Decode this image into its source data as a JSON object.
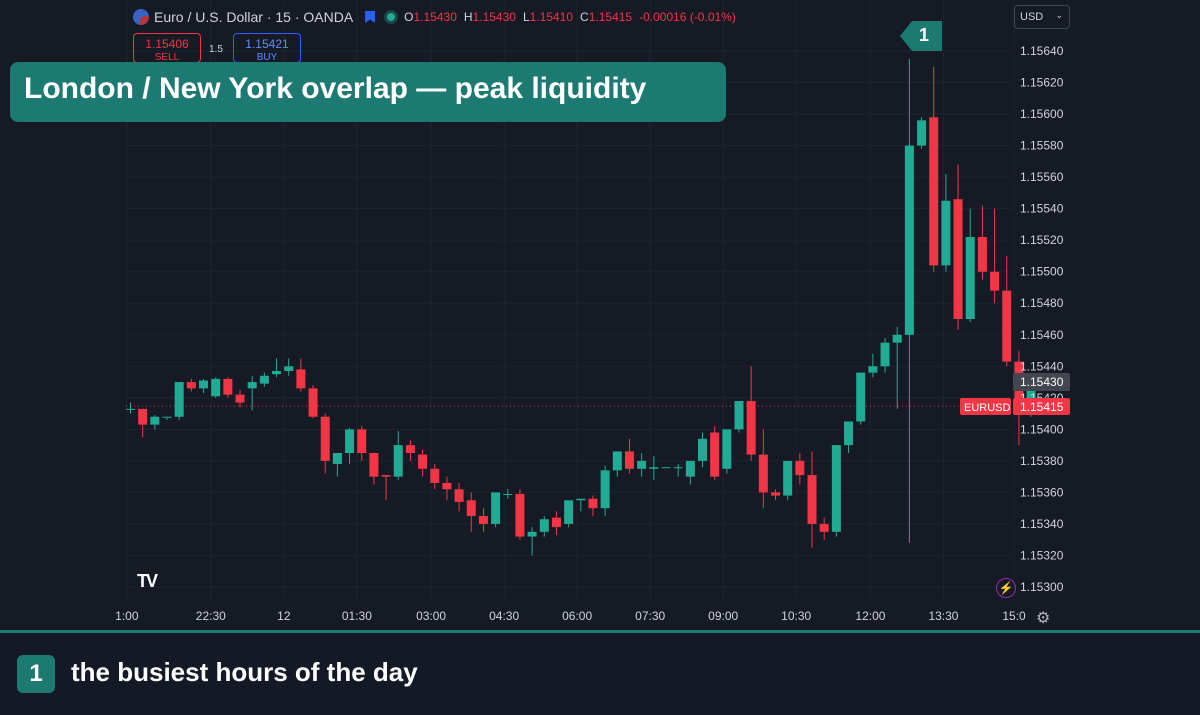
{
  "header": {
    "symbol_title": "Euro / U.S. Dollar · 15 · OANDA",
    "open": "1.15430",
    "high": "1.15430",
    "low": "1.15410",
    "close": "1.15415",
    "change": "-0.00016 (-0.01%)",
    "labels": {
      "o": "O",
      "h": "H",
      "l": "L",
      "c": "C"
    }
  },
  "trade": {
    "sell_price": "1.15406",
    "sell_label": "SELL",
    "spread": "1.5",
    "buy_price": "1.15421",
    "buy_label": "BUY"
  },
  "currency_selector": "USD",
  "banner": "London / New York overlap  —  peak liquidity",
  "callout_number": "1",
  "footer": {
    "number": "1",
    "caption": "the busiest hours of the day"
  },
  "logo_text": "TV",
  "colors": {
    "up": "#22ab94",
    "down": "#f23645",
    "accent": "#1d7a72",
    "background": "#161a25"
  },
  "icons": [
    "flag-icon",
    "bookmark-icon",
    "live-dot-icon",
    "chevron-down-icon",
    "gear-icon",
    "bolt-icon",
    "tradingview-logo"
  ],
  "chart_data": {
    "type": "candlestick",
    "symbol": "EURUSD",
    "interval": "15",
    "y_ticks": [
      "1.15640",
      "1.15620",
      "1.15600",
      "1.15580",
      "1.15560",
      "1.15540",
      "1.15520",
      "1.15500",
      "1.15480",
      "1.15460",
      "1.15440",
      "1.15420",
      "1.15400",
      "1.15380",
      "1.15360",
      "1.15340",
      "1.15320",
      "1.15300"
    ],
    "ylim": [
      1.15295,
      1.15648
    ],
    "x_ticks": [
      "1:00",
      "22:30",
      "12",
      "01:30",
      "03:00",
      "04:30",
      "06:00",
      "07:30",
      "09:00",
      "10:30",
      "12:00",
      "13:30",
      "15:0"
    ],
    "x_tick_index": [
      -0.3,
      6.6,
      12.6,
      18.6,
      24.7,
      30.7,
      36.7,
      42.7,
      48.7,
      54.7,
      60.8,
      66.8,
      72.6
    ],
    "last_price_label": "1.15430",
    "current_price": {
      "symbol": "EURUSD",
      "value": "1.15415"
    },
    "candles": [
      [
        1.15413,
        1.15417,
        1.15413,
        1.1541
      ],
      [
        1.15413,
        1.15413,
        1.15403,
        1.15395
      ],
      [
        1.15403,
        1.15409,
        1.15408,
        1.154
      ],
      [
        1.15408,
        1.15408,
        1.15408,
        1.15406
      ],
      [
        1.15408,
        1.1543,
        1.1543,
        1.15406
      ],
      [
        1.1543,
        1.15432,
        1.15426,
        1.15424
      ],
      [
        1.15426,
        1.15432,
        1.15431,
        1.15423
      ],
      [
        1.15421,
        1.15433,
        1.15432,
        1.1542
      ],
      [
        1.15432,
        1.15433,
        1.15422,
        1.1542
      ],
      [
        1.15422,
        1.15425,
        1.15417,
        1.15414
      ],
      [
        1.15426,
        1.15434,
        1.1543,
        1.15412
      ],
      [
        1.15429,
        1.15436,
        1.15434,
        1.15427
      ],
      [
        1.15435,
        1.15445,
        1.15437,
        1.15433
      ],
      [
        1.15437,
        1.15445,
        1.1544,
        1.15434
      ],
      [
        1.15438,
        1.15445,
        1.15426,
        1.15424
      ],
      [
        1.15426,
        1.15428,
        1.15408,
        1.15407
      ],
      [
        1.15408,
        1.1541,
        1.1538,
        1.15372
      ],
      [
        1.15378,
        1.15384,
        1.15385,
        1.1537
      ],
      [
        1.15385,
        1.15401,
        1.154,
        1.15378
      ],
      [
        1.154,
        1.15402,
        1.15385,
        1.1538
      ],
      [
        1.15385,
        1.15385,
        1.1537,
        1.15365
      ],
      [
        1.15371,
        1.15371,
        1.1537,
        1.15355
      ],
      [
        1.1537,
        1.15399,
        1.1539,
        1.15368
      ],
      [
        1.1539,
        1.15393,
        1.15385,
        1.1538
      ],
      [
        1.15384,
        1.15387,
        1.15375,
        1.1537
      ],
      [
        1.15375,
        1.15378,
        1.15366,
        1.15362
      ],
      [
        1.15366,
        1.1537,
        1.15362,
        1.15355
      ],
      [
        1.15362,
        1.15366,
        1.15354,
        1.15348
      ],
      [
        1.15355,
        1.1536,
        1.15345,
        1.15335
      ],
      [
        1.15345,
        1.1535,
        1.1534,
        1.15335
      ],
      [
        1.1534,
        1.1536,
        1.1536,
        1.15338
      ],
      [
        1.15359,
        1.15362,
        1.15359,
        1.15356
      ],
      [
        1.15359,
        1.15362,
        1.15332,
        1.1533
      ],
      [
        1.15332,
        1.15338,
        1.15335,
        1.1532
      ],
      [
        1.15335,
        1.15345,
        1.15343,
        1.15332
      ],
      [
        1.15344,
        1.15348,
        1.15338,
        1.15333
      ],
      [
        1.1534,
        1.15352,
        1.15355,
        1.15338
      ],
      [
        1.15355,
        1.15355,
        1.15356,
        1.15348
      ],
      [
        1.15356,
        1.15358,
        1.1535,
        1.15345
      ],
      [
        1.1535,
        1.15377,
        1.15374,
        1.15345
      ],
      [
        1.15374,
        1.15384,
        1.15386,
        1.1537
      ],
      [
        1.15386,
        1.15394,
        1.15375,
        1.15372
      ],
      [
        1.15375,
        1.15385,
        1.1538,
        1.1537
      ],
      [
        1.15375,
        1.15383,
        1.15376,
        1.15368
      ],
      [
        1.15376,
        1.15376,
        1.15376,
        1.15376
      ],
      [
        1.15376,
        1.15378,
        1.15376,
        1.1537
      ],
      [
        1.1537,
        1.1538,
        1.1538,
        1.15365
      ],
      [
        1.1538,
        1.15398,
        1.15394,
        1.15376
      ],
      [
        1.15398,
        1.15402,
        1.1537,
        1.15368
      ],
      [
        1.15375,
        1.154,
        1.154,
        1.15372
      ],
      [
        1.154,
        1.15418,
        1.15418,
        1.15398
      ],
      [
        1.15418,
        1.1544,
        1.15384,
        1.1538
      ],
      [
        1.15384,
        1.154,
        1.1536,
        1.1535
      ],
      [
        1.1536,
        1.15362,
        1.15358,
        1.15355
      ],
      [
        1.15358,
        1.1538,
        1.1538,
        1.15355
      ],
      [
        1.1538,
        1.15385,
        1.15371,
        1.15365
      ],
      [
        1.15371,
        1.15386,
        1.1534,
        1.15325
      ],
      [
        1.1534,
        1.15344,
        1.15335,
        1.1533
      ],
      [
        1.15335,
        1.1539,
        1.1539,
        1.15332
      ],
      [
        1.1539,
        1.154,
        1.15405,
        1.15385
      ],
      [
        1.15405,
        1.1542,
        1.15436,
        1.15403
      ],
      [
        1.15436,
        1.15448,
        1.1544,
        1.15433
      ],
      [
        1.1544,
        1.15458,
        1.15455,
        1.15436
      ],
      [
        1.15455,
        1.15465,
        1.1546,
        1.15413
      ],
      [
        1.1546,
        1.15635,
        1.1558,
        1.15328
      ],
      [
        1.1558,
        1.15598,
        1.15596,
        1.15578
      ],
      [
        1.15598,
        1.1563,
        1.15504,
        1.155
      ],
      [
        1.15504,
        1.15562,
        1.15545,
        1.155
      ],
      [
        1.15546,
        1.15568,
        1.1547,
        1.15463
      ],
      [
        1.1547,
        1.1554,
        1.15522,
        1.15468
      ],
      [
        1.15522,
        1.15542,
        1.155,
        1.15495
      ],
      [
        1.155,
        1.1554,
        1.15488,
        1.1548
      ],
      [
        1.15488,
        1.1551,
        1.15443,
        1.1544
      ],
      [
        1.15443,
        1.1545,
        1.15418,
        1.1539
      ],
      [
        1.15418,
        1.15432,
        1.1543,
        1.15408
      ]
    ]
  }
}
